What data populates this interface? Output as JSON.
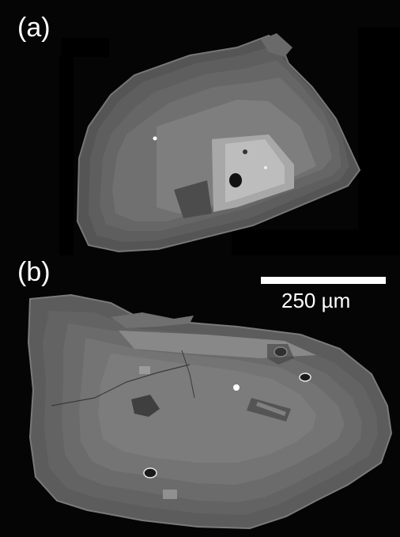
{
  "panel_a": {
    "label": "(a)"
  },
  "panel_b": {
    "label": "(b)"
  },
  "scale_bar": {
    "text": "250 µm"
  },
  "colors": {
    "background": "#050505",
    "crystal_dark": "#4d4d4d",
    "crystal_mid": "#6b6b6b",
    "crystal_light": "#8a8a8a",
    "crystal_bright": "#bcbcbc",
    "label_text": "#ffffff"
  }
}
